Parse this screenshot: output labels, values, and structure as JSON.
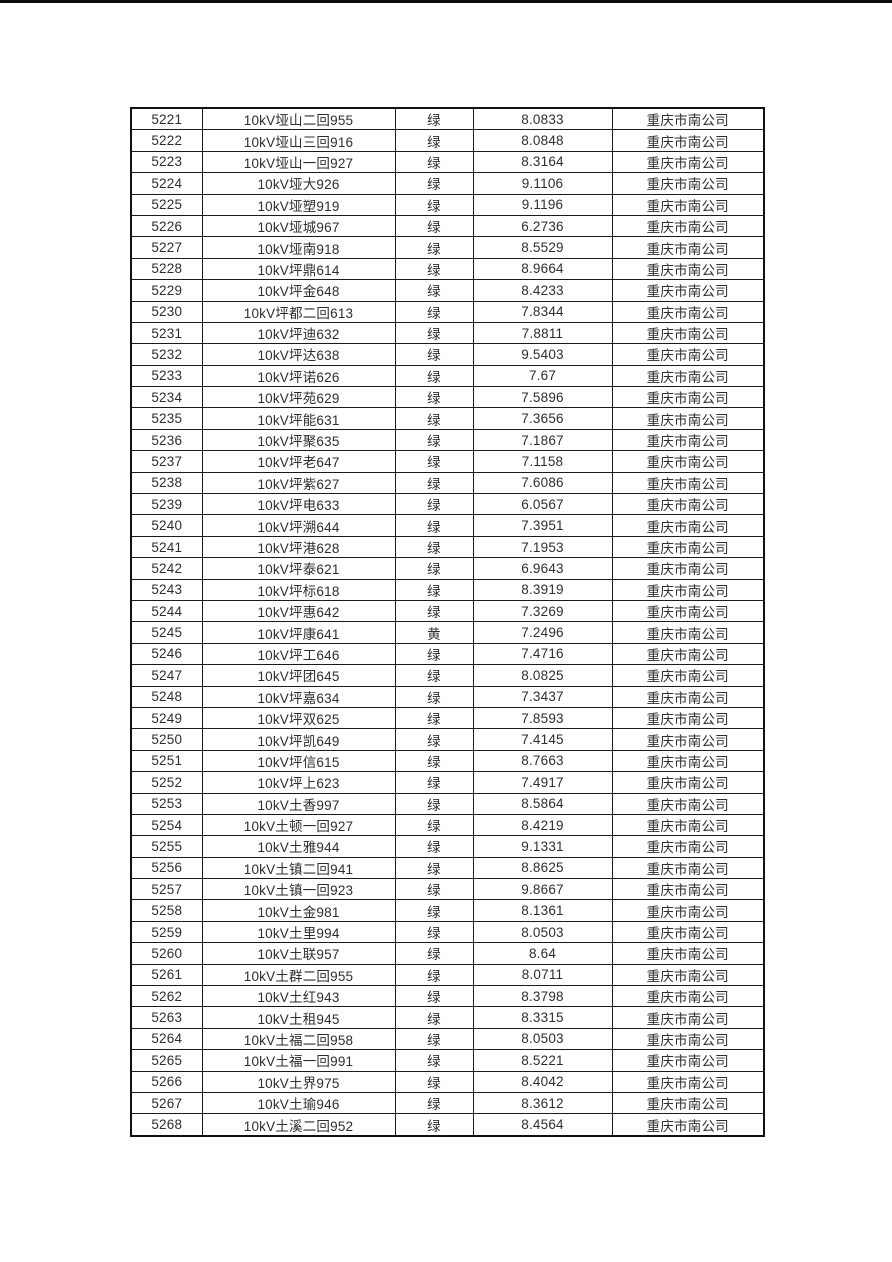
{
  "page": {
    "top_bar_color": "#0a0a0a",
    "background_color": "#ffffff"
  },
  "table": {
    "border_color": "#1a1a1a",
    "text_color": "#2e2e2e",
    "rows": [
      {
        "id": "5221",
        "name": "10kV垭山二回955",
        "status": "绿",
        "value": "8.0833",
        "company": "重庆市南公司"
      },
      {
        "id": "5222",
        "name": "10kV垭山三回916",
        "status": "绿",
        "value": "8.0848",
        "company": "重庆市南公司"
      },
      {
        "id": "5223",
        "name": "10kV垭山一回927",
        "status": "绿",
        "value": "8.3164",
        "company": "重庆市南公司"
      },
      {
        "id": "5224",
        "name": "10kV垭大926",
        "status": "绿",
        "value": "9.1106",
        "company": "重庆市南公司"
      },
      {
        "id": "5225",
        "name": "10kV垭塑919",
        "status": "绿",
        "value": "9.1196",
        "company": "重庆市南公司"
      },
      {
        "id": "5226",
        "name": "10kV垭城967",
        "status": "绿",
        "value": "6.2736",
        "company": "重庆市南公司"
      },
      {
        "id": "5227",
        "name": "10kV垭南918",
        "status": "绿",
        "value": "8.5529",
        "company": "重庆市南公司"
      },
      {
        "id": "5228",
        "name": "10kV坪鼎614",
        "status": "绿",
        "value": "8.9664",
        "company": "重庆市南公司"
      },
      {
        "id": "5229",
        "name": "10kV坪金648",
        "status": "绿",
        "value": "8.4233",
        "company": "重庆市南公司"
      },
      {
        "id": "5230",
        "name": "10kV坪都二回613",
        "status": "绿",
        "value": "7.8344",
        "company": "重庆市南公司"
      },
      {
        "id": "5231",
        "name": "10kV坪迪632",
        "status": "绿",
        "value": "7.8811",
        "company": "重庆市南公司"
      },
      {
        "id": "5232",
        "name": "10kV坪达638",
        "status": "绿",
        "value": "9.5403",
        "company": "重庆市南公司"
      },
      {
        "id": "5233",
        "name": "10kV坪诺626",
        "status": "绿",
        "value": "7.67",
        "company": "重庆市南公司"
      },
      {
        "id": "5234",
        "name": "10kV坪苑629",
        "status": "绿",
        "value": "7.5896",
        "company": "重庆市南公司"
      },
      {
        "id": "5235",
        "name": "10kV坪能631",
        "status": "绿",
        "value": "7.3656",
        "company": "重庆市南公司"
      },
      {
        "id": "5236",
        "name": "10kV坪聚635",
        "status": "绿",
        "value": "7.1867",
        "company": "重庆市南公司"
      },
      {
        "id": "5237",
        "name": "10kV坪老647",
        "status": "绿",
        "value": "7.1158",
        "company": "重庆市南公司"
      },
      {
        "id": "5238",
        "name": "10kV坪紫627",
        "status": "绿",
        "value": "7.6086",
        "company": "重庆市南公司"
      },
      {
        "id": "5239",
        "name": "10kV坪电633",
        "status": "绿",
        "value": "6.0567",
        "company": "重庆市南公司"
      },
      {
        "id": "5240",
        "name": "10kV坪溯644",
        "status": "绿",
        "value": "7.3951",
        "company": "重庆市南公司"
      },
      {
        "id": "5241",
        "name": "10kV坪港628",
        "status": "绿",
        "value": "7.1953",
        "company": "重庆市南公司"
      },
      {
        "id": "5242",
        "name": "10kV坪泰621",
        "status": "绿",
        "value": "6.9643",
        "company": "重庆市南公司"
      },
      {
        "id": "5243",
        "name": "10kV坪标618",
        "status": "绿",
        "value": "8.3919",
        "company": "重庆市南公司"
      },
      {
        "id": "5244",
        "name": "10kV坪惠642",
        "status": "绿",
        "value": "7.3269",
        "company": "重庆市南公司"
      },
      {
        "id": "5245",
        "name": "10kV坪康641",
        "status": "黄",
        "value": "7.2496",
        "company": "重庆市南公司"
      },
      {
        "id": "5246",
        "name": "10kV坪工646",
        "status": "绿",
        "value": "7.4716",
        "company": "重庆市南公司"
      },
      {
        "id": "5247",
        "name": "10kV坪团645",
        "status": "绿",
        "value": "8.0825",
        "company": "重庆市南公司"
      },
      {
        "id": "5248",
        "name": "10kV坪嘉634",
        "status": "绿",
        "value": "7.3437",
        "company": "重庆市南公司"
      },
      {
        "id": "5249",
        "name": "10kV坪双625",
        "status": "绿",
        "value": "7.8593",
        "company": "重庆市南公司"
      },
      {
        "id": "5250",
        "name": "10kV坪凯649",
        "status": "绿",
        "value": "7.4145",
        "company": "重庆市南公司"
      },
      {
        "id": "5251",
        "name": "10kV坪信615",
        "status": "绿",
        "value": "8.7663",
        "company": "重庆市南公司"
      },
      {
        "id": "5252",
        "name": "10kV坪上623",
        "status": "绿",
        "value": "7.4917",
        "company": "重庆市南公司"
      },
      {
        "id": "5253",
        "name": "10kV土香997",
        "status": "绿",
        "value": "8.5864",
        "company": "重庆市南公司"
      },
      {
        "id": "5254",
        "name": "10kV土顿一回927",
        "status": "绿",
        "value": "8.4219",
        "company": "重庆市南公司"
      },
      {
        "id": "5255",
        "name": "10kV土雅944",
        "status": "绿",
        "value": "9.1331",
        "company": "重庆市南公司"
      },
      {
        "id": "5256",
        "name": "10kV土镇二回941",
        "status": "绿",
        "value": "8.8625",
        "company": "重庆市南公司"
      },
      {
        "id": "5257",
        "name": "10kV土镇一回923",
        "status": "绿",
        "value": "9.8667",
        "company": "重庆市南公司"
      },
      {
        "id": "5258",
        "name": "10kV土金981",
        "status": "绿",
        "value": "8.1361",
        "company": "重庆市南公司"
      },
      {
        "id": "5259",
        "name": "10kV土里994",
        "status": "绿",
        "value": "8.0503",
        "company": "重庆市南公司"
      },
      {
        "id": "5260",
        "name": "10kV土联957",
        "status": "绿",
        "value": "8.64",
        "company": "重庆市南公司"
      },
      {
        "id": "5261",
        "name": "10kV土群二回955",
        "status": "绿",
        "value": "8.0711",
        "company": "重庆市南公司"
      },
      {
        "id": "5262",
        "name": "10kV土红943",
        "status": "绿",
        "value": "8.3798",
        "company": "重庆市南公司"
      },
      {
        "id": "5263",
        "name": "10kV土租945",
        "status": "绿",
        "value": "8.3315",
        "company": "重庆市南公司"
      },
      {
        "id": "5264",
        "name": "10kV土福二回958",
        "status": "绿",
        "value": "8.0503",
        "company": "重庆市南公司"
      },
      {
        "id": "5265",
        "name": "10kV土福一回991",
        "status": "绿",
        "value": "8.5221",
        "company": "重庆市南公司"
      },
      {
        "id": "5266",
        "name": "10kV土界975",
        "status": "绿",
        "value": "8.4042",
        "company": "重庆市南公司"
      },
      {
        "id": "5267",
        "name": "10kV土瑜946",
        "status": "绿",
        "value": "8.3612",
        "company": "重庆市南公司"
      },
      {
        "id": "5268",
        "name": "10kV土溪二回952",
        "status": "绿",
        "value": "8.4564",
        "company": "重庆市南公司"
      }
    ]
  }
}
